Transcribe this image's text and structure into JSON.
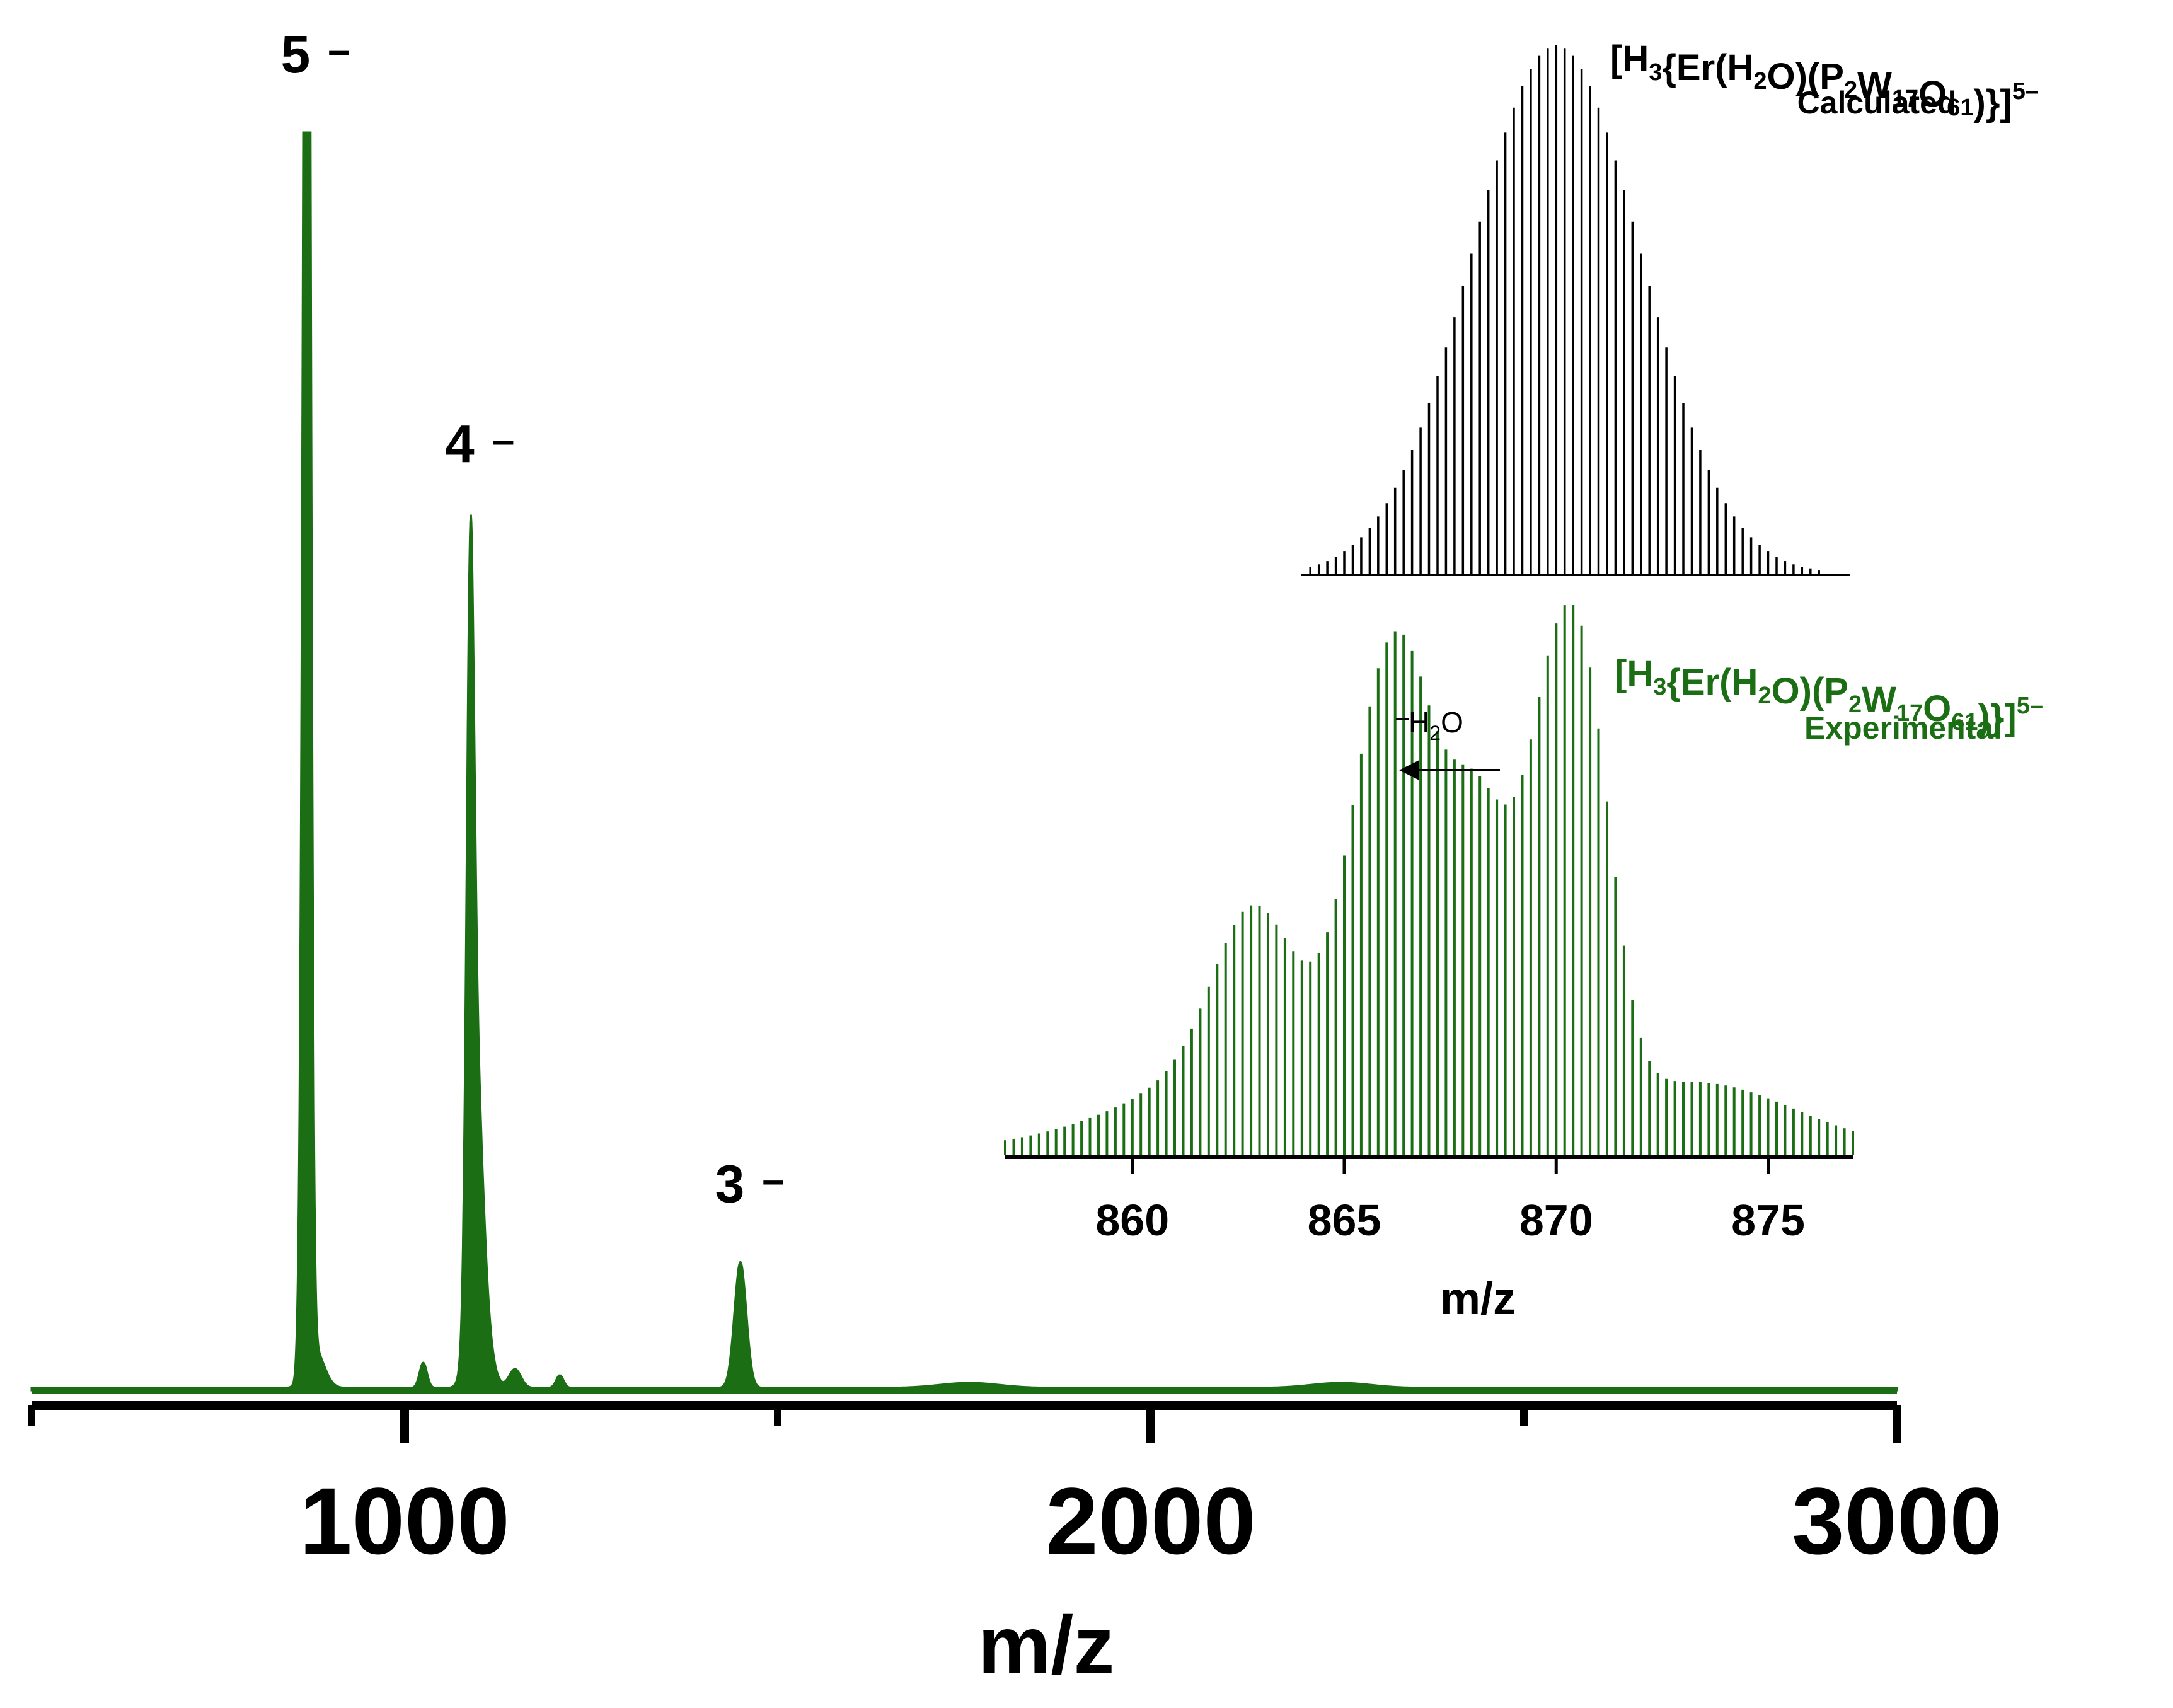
{
  "colors": {
    "green": "#1b6e14",
    "black": "#000000",
    "background": "#ffffff"
  },
  "chart_data": [
    {
      "type": "line",
      "name": "main-spectrum",
      "title": "",
      "xlabel": "m/z",
      "ylabel": "",
      "xlim": [
        500,
        3000
      ],
      "ylim": [
        0,
        100
      ],
      "xticks": [
        1000,
        2000,
        3000
      ],
      "xtick_labels": [
        "1000",
        "2000",
        "3000"
      ],
      "minor_xticks": [
        500,
        1500,
        2500
      ],
      "grid": false,
      "series": [
        {
          "name": "experimental",
          "color": "#1b6e14",
          "peaks": [
            {
              "center": 868,
              "height": 100,
              "width": 5
            },
            {
              "center": 870,
              "height": 80,
              "width": 4
            },
            {
              "center": 880,
              "height": 3,
              "width": 12
            },
            {
              "center": 1025,
              "height": 2,
              "width": 5
            },
            {
              "center": 1088,
              "height": 51,
              "width": 5
            },
            {
              "center": 1095,
              "height": 20,
              "width": 9
            },
            {
              "center": 1102,
              "height": 6,
              "width": 12
            },
            {
              "center": 1148,
              "height": 1.5,
              "width": 8
            },
            {
              "center": 1208,
              "height": 1,
              "width": 5
            },
            {
              "center": 1450,
              "height": 10,
              "width": 8
            },
            {
              "center": 1757,
              "height": 0.4,
              "width": 40
            },
            {
              "center": 2255,
              "height": 0.4,
              "width": 40
            }
          ]
        }
      ],
      "annotations": [
        {
          "label": "5",
          "sign": "–",
          "x": 868
        },
        {
          "label": "4",
          "sign": "–",
          "x": 1088
        },
        {
          "label": "3",
          "sign": "–",
          "x": 1450
        }
      ]
    },
    {
      "type": "bar",
      "name": "inset-isotope-pattern",
      "xlabel": "m/z",
      "xlim": [
        857,
        877
      ],
      "xticks": [
        860,
        865,
        870,
        875
      ],
      "xtick_labels": [
        "860",
        "865",
        "870",
        "875"
      ],
      "line_spacing": 0.2,
      "calculated": {
        "name": "Calculated",
        "color": "#000000",
        "center": 870,
        "sigma": 2,
        "range": [
          864.2,
          876.6
        ],
        "max": 100
      },
      "experimental": {
        "name": "Experimental",
        "color": "#1b6e14",
        "range": [
          857,
          877
        ],
        "baseline": 4,
        "components": [
          {
            "center": 862.8,
            "sigma": 0.9,
            "height": 20
          },
          {
            "center": 865.8,
            "sigma": 0.75,
            "height": 43
          },
          {
            "center": 866.7,
            "sigma": 0.65,
            "height": 30
          },
          {
            "center": 868.1,
            "sigma": 0.75,
            "height": 40
          },
          {
            "center": 870.0,
            "sigma": 0.75,
            "height": 58
          },
          {
            "center": 870.9,
            "sigma": 0.6,
            "height": 30
          },
          {
            "center": 864.0,
            "sigma": 3.0,
            "height": 14
          },
          {
            "center": 873.5,
            "sigma": 2.2,
            "height": 8
          }
        ]
      }
    }
  ],
  "calculated_label": {
    "formula_parts": [
      {
        "t": "[H",
        "sub": "3",
        "sup": ""
      },
      {
        "t": "{Er(H",
        "sub": "2",
        "sup": ""
      },
      {
        "t": "O)(P",
        "sub": "2",
        "sup": ""
      },
      {
        "t": "W",
        "sub": "17",
        "sup": ""
      },
      {
        "t": "O",
        "sub": "61",
        "sup": ""
      },
      {
        "t": ")}]",
        "sub": "",
        "sup": "5–"
      }
    ],
    "caption": "Calculated"
  },
  "experimental_label": {
    "formula_parts": [
      {
        "t": "[H",
        "sub": "3",
        "sup": ""
      },
      {
        "t": "{Er(H",
        "sub": "2",
        "sup": ""
      },
      {
        "t": "O)(P",
        "sub": "2",
        "sup": ""
      },
      {
        "t": "W",
        "sub": "17",
        "sup": ""
      },
      {
        "t": "O",
        "sub": "61",
        "sup": ""
      },
      {
        "t": ")}]",
        "sub": "",
        "sup": "5–"
      }
    ],
    "caption": "Experimental"
  },
  "water_loss": {
    "prefix": "–",
    "text": "H",
    "sub": "2",
    "suffix": "O"
  }
}
